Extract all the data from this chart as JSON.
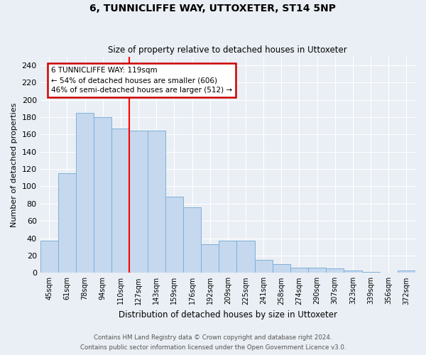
{
  "title": "6, TUNNICLIFFE WAY, UTTOXETER, ST14 5NP",
  "subtitle": "Size of property relative to detached houses in Uttoxeter",
  "xlabel": "Distribution of detached houses by size in Uttoxeter",
  "ylabel": "Number of detached properties",
  "categories": [
    "45sqm",
    "61sqm",
    "78sqm",
    "94sqm",
    "110sqm",
    "127sqm",
    "143sqm",
    "159sqm",
    "176sqm",
    "192sqm",
    "209sqm",
    "225sqm",
    "241sqm",
    "258sqm",
    "274sqm",
    "290sqm",
    "307sqm",
    "323sqm",
    "339sqm",
    "356sqm",
    "372sqm"
  ],
  "values": [
    37,
    115,
    185,
    180,
    167,
    164,
    164,
    88,
    76,
    33,
    37,
    37,
    15,
    10,
    6,
    6,
    5,
    3,
    1,
    0,
    3
  ],
  "bar_color": "#c5d8ee",
  "bar_edge_color": "#7fb0d8",
  "background_color": "#eaeff5",
  "grid_color": "#ffffff",
  "red_line_x": 5,
  "annotation_lines": [
    "6 TUNNICLIFFE WAY: 119sqm",
    "← 54% of detached houses are smaller (606)",
    "46% of semi-detached houses are larger (512) →"
  ],
  "annotation_box_color": "#cc0000",
  "ylim": [
    0,
    250
  ],
  "yticks": [
    0,
    20,
    40,
    60,
    80,
    100,
    120,
    140,
    160,
    180,
    200,
    220,
    240
  ],
  "footer_line1": "Contains HM Land Registry data © Crown copyright and database right 2024.",
  "footer_line2": "Contains public sector information licensed under the Open Government Licence v3.0."
}
